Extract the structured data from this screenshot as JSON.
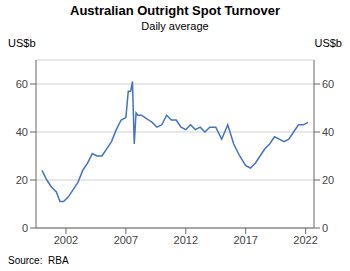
{
  "chart_data": {
    "type": "line",
    "title": "Australian Outright Spot Turnover",
    "subtitle": "Daily average",
    "ylabel": "US$b",
    "y2label": "US$b",
    "source": "Source:  RBA",
    "color": "#4472c4",
    "grid": true,
    "xlim": [
      1999.5,
      2022.7
    ],
    "xticks": [
      2002,
      2007,
      2012,
      2017,
      2022
    ],
    "ylim": [
      0,
      70
    ],
    "yticks": [
      0,
      20,
      40,
      60
    ],
    "y2lim": [
      0,
      70
    ],
    "y2ticks": [
      0,
      20,
      40,
      60
    ],
    "x": [
      2000.0,
      2000.4,
      2000.8,
      2001.2,
      2001.5,
      2001.8,
      2002.2,
      2002.6,
      2003.0,
      2003.4,
      2003.8,
      2004.2,
      2004.6,
      2005.0,
      2005.4,
      2005.8,
      2006.2,
      2006.6,
      2007.0,
      2007.2,
      2007.4,
      2007.55,
      2007.7,
      2007.85,
      2008.0,
      2008.3,
      2008.6,
      2008.9,
      2009.2,
      2009.6,
      2010.0,
      2010.4,
      2010.8,
      2011.2,
      2011.6,
      2012.0,
      2012.4,
      2012.8,
      2013.2,
      2013.6,
      2014.0,
      2014.5,
      2015.0,
      2015.5,
      2016.0,
      2016.5,
      2017.0,
      2017.4,
      2017.8,
      2018.2,
      2018.6,
      2019.0,
      2019.4,
      2019.8,
      2020.2,
      2020.6,
      2021.0,
      2021.4,
      2021.8,
      2022.2
    ],
    "values": [
      24,
      20,
      17,
      15,
      11,
      11,
      13,
      16,
      19,
      24,
      27,
      31,
      30,
      30,
      33,
      36,
      41,
      45,
      46,
      57,
      57,
      61,
      35,
      48,
      47,
      47,
      46,
      45,
      44,
      42,
      43,
      47,
      45,
      45,
      42,
      41,
      43,
      41,
      42,
      40,
      42,
      42,
      37,
      43,
      35,
      30,
      26,
      25,
      27,
      30,
      33,
      35,
      38,
      37,
      36,
      37,
      40,
      43,
      43,
      44
    ]
  }
}
